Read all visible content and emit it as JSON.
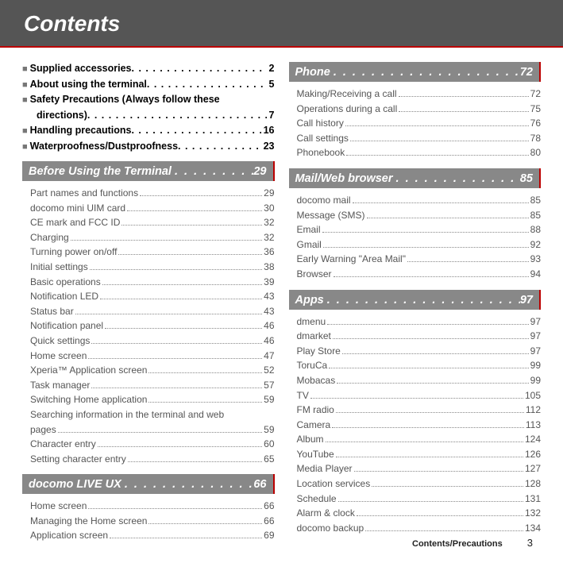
{
  "header": {
    "title": "Contents"
  },
  "intro": [
    {
      "title": "Supplied accessories",
      "page": "2",
      "indent": false,
      "wrap": false
    },
    {
      "title": "About using the terminal",
      "page": "5",
      "indent": false,
      "wrap": false
    },
    {
      "title": "Safety Precautions (Always follow these",
      "page": "",
      "indent": false,
      "wrap": true
    },
    {
      "title": "directions)",
      "page": "7",
      "indent": true,
      "wrap": false
    },
    {
      "title": "Handling precautions",
      "page": "16",
      "indent": false,
      "wrap": false
    },
    {
      "title": "Waterproofness/Dustproofness",
      "page": "23",
      "indent": false,
      "wrap": false
    }
  ],
  "left_sections": [
    {
      "title": "Before Using the Terminal",
      "page": "29",
      "items": [
        {
          "t": "Part names and functions",
          "p": "29"
        },
        {
          "t": "docomo mini UIM card",
          "p": "30"
        },
        {
          "t": "CE mark and FCC ID",
          "p": "32"
        },
        {
          "t": "Charging",
          "p": "32"
        },
        {
          "t": "Turning power on/off",
          "p": "36"
        },
        {
          "t": "Initial settings",
          "p": "38"
        },
        {
          "t": "Basic operations",
          "p": "39"
        },
        {
          "t": "Notification LED",
          "p": "43"
        },
        {
          "t": "Status bar",
          "p": "43"
        },
        {
          "t": "Notification panel",
          "p": "46"
        },
        {
          "t": "Quick settings",
          "p": "46"
        },
        {
          "t": "Home screen",
          "p": "47"
        },
        {
          "t": "Xperia™ Application screen",
          "p": "52"
        },
        {
          "t": "Task manager",
          "p": "57"
        },
        {
          "t": "Switching Home application",
          "p": "59"
        },
        {
          "t": "Searching information in the terminal and web pages",
          "p": "59",
          "wrap": true
        },
        {
          "t": "Character entry",
          "p": "60"
        },
        {
          "t": "Setting character entry",
          "p": "65"
        }
      ]
    },
    {
      "title": "docomo LIVE UX",
      "page": "66",
      "items": [
        {
          "t": "Home screen",
          "p": "66"
        },
        {
          "t": "Managing the Home screen",
          "p": "66"
        },
        {
          "t": "Application screen",
          "p": "69"
        }
      ]
    }
  ],
  "right_sections": [
    {
      "title": "Phone",
      "page": "72",
      "items": [
        {
          "t": "Making/Receiving a call",
          "p": "72"
        },
        {
          "t": "Operations during a call",
          "p": "75"
        },
        {
          "t": "Call history",
          "p": "76"
        },
        {
          "t": "Call settings",
          "p": "78"
        },
        {
          "t": "Phonebook",
          "p": "80"
        }
      ]
    },
    {
      "title": "Mail/Web browser",
      "page": "85",
      "items": [
        {
          "t": "docomo mail",
          "p": "85"
        },
        {
          "t": "Message (SMS)",
          "p": "85"
        },
        {
          "t": "Email",
          "p": "88"
        },
        {
          "t": "Gmail",
          "p": "92"
        },
        {
          "t": "Early Warning \"Area Mail\"",
          "p": "93"
        },
        {
          "t": "Browser",
          "p": "94"
        }
      ]
    },
    {
      "title": "Apps",
      "page": "97",
      "items": [
        {
          "t": "dmenu",
          "p": "97"
        },
        {
          "t": "dmarket",
          "p": "97"
        },
        {
          "t": "Play Store",
          "p": "97"
        },
        {
          "t": "ToruCa",
          "p": "99"
        },
        {
          "t": "Mobacas",
          "p": "99"
        },
        {
          "t": "TV",
          "p": "105"
        },
        {
          "t": "FM radio",
          "p": "112"
        },
        {
          "t": "Camera",
          "p": "113"
        },
        {
          "t": "Album",
          "p": "124"
        },
        {
          "t": "YouTube",
          "p": "126"
        },
        {
          "t": "Media Player",
          "p": "127"
        },
        {
          "t": "Location services",
          "p": "128"
        },
        {
          "t": "Schedule",
          "p": "131"
        },
        {
          "t": "Alarm & clock",
          "p": "132"
        },
        {
          "t": "docomo backup",
          "p": "134"
        }
      ]
    }
  ],
  "footer": {
    "text": "Contents/Precautions",
    "page": "3"
  }
}
